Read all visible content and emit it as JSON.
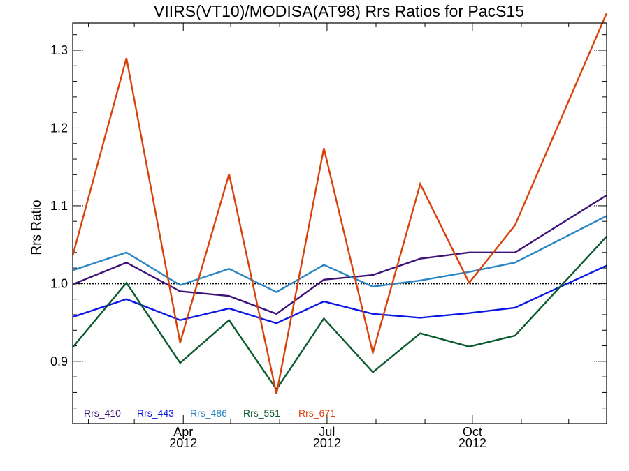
{
  "chart_data": {
    "type": "line",
    "title": "VIIRS(VT10)/MODISA(AT98)  Rrs Ratios for PacS15",
    "xlabel": "",
    "ylabel": "Rrs Ratio",
    "xlim": [
      "2012-01-22",
      "2012-12-25"
    ],
    "ylim": [
      0.82,
      1.335
    ],
    "reference_line": 1.0,
    "x_ticks": [
      {
        "date": "2012-04-01",
        "label": "Apr",
        "sublabel": "2012"
      },
      {
        "date": "2012-07-01",
        "label": "Jul",
        "sublabel": "2012"
      },
      {
        "date": "2012-10-01",
        "label": "Oct",
        "sublabel": "2012"
      }
    ],
    "y_ticks": [
      {
        "value": 0.9,
        "label": "0.9"
      },
      {
        "value": 1.0,
        "label": "1.0"
      },
      {
        "value": 1.1,
        "label": "1.1"
      },
      {
        "value": 1.2,
        "label": "1.2"
      },
      {
        "value": 1.3,
        "label": "1.3"
      }
    ],
    "x": [
      "2012-01-22",
      "2012-02-25",
      "2012-03-30",
      "2012-04-30",
      "2012-05-30",
      "2012-06-29",
      "2012-07-30",
      "2012-08-29",
      "2012-09-29",
      "2012-10-28",
      "2012-11-27",
      "2012-12-25"
    ],
    "series": [
      {
        "name": "Rrs_410",
        "color": "#3d1178",
        "values": [
          0.999,
          1.027,
          0.99,
          0.984,
          0.961,
          1.005,
          1.011,
          1.032,
          1.04,
          1.04,
          1.078,
          null
        ]
      },
      {
        "name": "Rrs_443",
        "color": "#0a17e6",
        "values": [
          0.957,
          0.98,
          0.953,
          0.968,
          0.949,
          0.977,
          0.961,
          0.956,
          0.962,
          0.969,
          0.997,
          null
        ]
      },
      {
        "name": "Rrs_486",
        "color": "#2a86c4",
        "values": [
          1.017,
          1.04,
          0.998,
          1.019,
          0.989,
          1.024,
          0.996,
          1.004,
          1.015,
          1.027,
          1.058,
          null
        ]
      },
      {
        "name": "Rrs_551",
        "color": "#0b5a2e",
        "values": [
          0.918,
          1.001,
          0.898,
          0.953,
          0.864,
          0.955,
          0.886,
          0.936,
          0.919,
          0.933,
          0.999,
          null
        ]
      },
      {
        "name": "Rrs_671",
        "color": "#d8420a",
        "values": [
          1.036,
          1.29,
          0.924,
          1.141,
          0.858,
          1.174,
          0.911,
          1.128,
          1.001,
          1.075,
          1.216,
          null
        ]
      }
    ]
  }
}
